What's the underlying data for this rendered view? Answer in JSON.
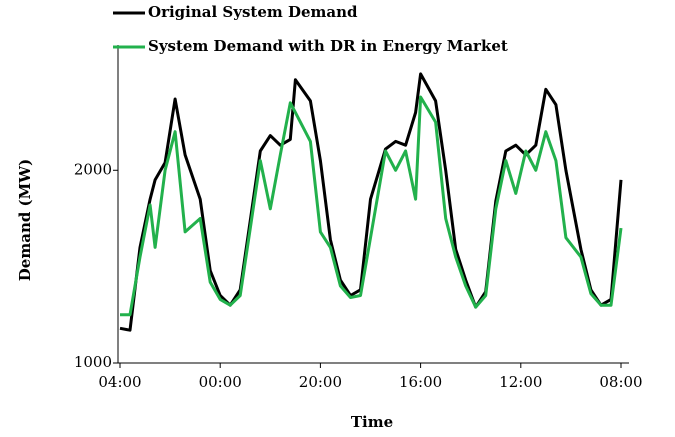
{
  "chart_data": {
    "type": "line",
    "xlabel": "Time",
    "ylabel": "Demand (MW)",
    "x": [
      0,
      2,
      4,
      6,
      7,
      9,
      11,
      13,
      16,
      18,
      20,
      22,
      24,
      26,
      28,
      30,
      32,
      34,
      35,
      38,
      40,
      42,
      44,
      46,
      48,
      50,
      53,
      55,
      57,
      59,
      60,
      63,
      65,
      67,
      69,
      71,
      73,
      75,
      77,
      79,
      81,
      83,
      85,
      87,
      89,
      92,
      94,
      96,
      98,
      100
    ],
    "series": [
      {
        "name": "Original System Demand",
        "color": "#000000",
        "values": [
          1180,
          1170,
          1600,
          1850,
          1950,
          2040,
          2370,
          2080,
          1850,
          1480,
          1350,
          1300,
          1380,
          1740,
          2100,
          2180,
          2130,
          2160,
          2470,
          2360,
          2050,
          1640,
          1430,
          1350,
          1380,
          1850,
          2110,
          2150,
          2130,
          2300,
          2500,
          2360,
          2000,
          1590,
          1430,
          1290,
          1370,
          1840,
          2100,
          2130,
          2080,
          2130,
          2420,
          2340,
          2000,
          1590,
          1380,
          1300,
          1330,
          1950
        ]
      },
      {
        "name": "System Demand with DR in Energy Market",
        "color": "#22b14c",
        "values": [
          1250,
          1250,
          1550,
          1820,
          1600,
          2000,
          2200,
          1680,
          1750,
          1420,
          1330,
          1300,
          1350,
          1700,
          2050,
          1800,
          2080,
          2350,
          2300,
          2150,
          1680,
          1600,
          1400,
          1340,
          1350,
          1650,
          2100,
          2000,
          2100,
          1850,
          2380,
          2250,
          1750,
          1550,
          1400,
          1290,
          1350,
          1800,
          2050,
          1880,
          2100,
          2000,
          2200,
          2050,
          1650,
          1550,
          1360,
          1300,
          1300,
          1700
        ]
      }
    ],
    "xlim": [
      0,
      100
    ],
    "xticks": [
      {
        "value": 0,
        "label": "04:00"
      },
      {
        "value": 20,
        "label": "00:00"
      },
      {
        "value": 40,
        "label": "20:00"
      },
      {
        "value": 60,
        "label": "16:00"
      },
      {
        "value": 80,
        "label": "12:00"
      },
      {
        "value": 100,
        "label": "08:00"
      }
    ],
    "ylim": [
      1000,
      2650
    ],
    "yticks": [
      1000,
      2000
    ],
    "grid": false
  }
}
